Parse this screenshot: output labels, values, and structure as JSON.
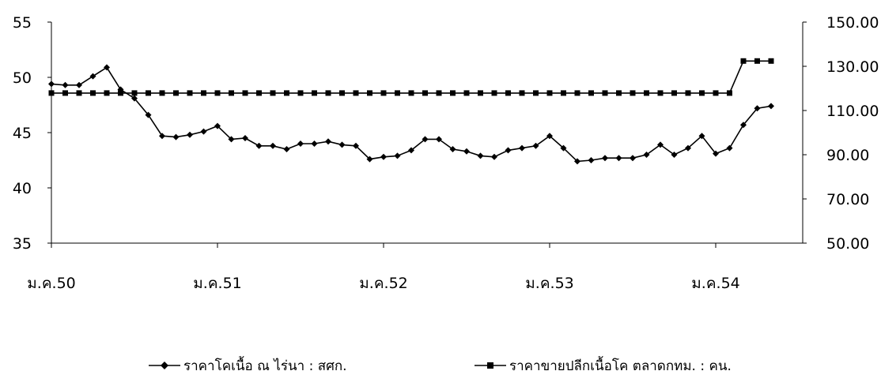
{
  "chart_data": {
    "type": "line",
    "x_tick_labels": [
      "ม.ค.50",
      "ม.ค.51",
      "ม.ค.52",
      "ม.ค.53",
      "ม.ค.54"
    ],
    "y_left": {
      "ticks": [
        "35",
        "40",
        "45",
        "50",
        "55"
      ],
      "ylim": [
        35,
        55
      ]
    },
    "y_right": {
      "ticks": [
        "50.00",
        "70.00",
        "90.00",
        "110.00",
        "130.00",
        "150.00"
      ],
      "ylim": [
        50,
        150
      ]
    },
    "series": [
      {
        "name": "ราคาโคเนื้อ ณ ไร่นา : สศก.",
        "axis": "left",
        "marker": "diamond",
        "color": "#000000",
        "values": [
          49.4,
          49.3,
          49.3,
          50.1,
          50.9,
          48.9,
          48.1,
          46.6,
          44.7,
          44.6,
          44.8,
          45.1,
          45.6,
          44.4,
          44.5,
          43.8,
          43.8,
          43.5,
          44.0,
          44.0,
          44.2,
          43.9,
          43.8,
          42.6,
          42.8,
          42.9,
          43.4,
          44.4,
          44.4,
          43.5,
          43.3,
          42.9,
          42.8,
          43.4,
          43.6,
          43.8,
          44.7,
          43.6,
          42.4,
          42.5,
          42.7,
          42.7,
          42.7,
          43.0,
          43.9,
          43.0,
          43.6,
          44.7,
          43.1,
          43.6,
          45.7,
          47.2,
          47.4
        ]
      },
      {
        "name": "ราคาขายปลีกเนื้อโค ตลาดกทม. : คน.",
        "axis": "right",
        "marker": "square",
        "color": "#000000",
        "values": [
          117.9,
          117.9,
          117.9,
          117.9,
          117.9,
          117.9,
          117.9,
          117.9,
          117.9,
          117.9,
          117.9,
          117.9,
          117.9,
          117.9,
          117.9,
          117.9,
          117.9,
          117.9,
          117.9,
          117.9,
          117.9,
          117.9,
          117.9,
          117.9,
          117.9,
          117.9,
          117.9,
          117.9,
          117.9,
          117.9,
          117.9,
          117.9,
          117.9,
          117.9,
          117.9,
          117.9,
          117.9,
          117.9,
          117.9,
          117.9,
          117.9,
          117.9,
          117.9,
          117.9,
          117.9,
          117.9,
          117.9,
          117.9,
          117.9,
          117.9,
          132.4,
          132.4,
          132.4
        ]
      }
    ],
    "grid": false,
    "legend_position": "bottom"
  }
}
